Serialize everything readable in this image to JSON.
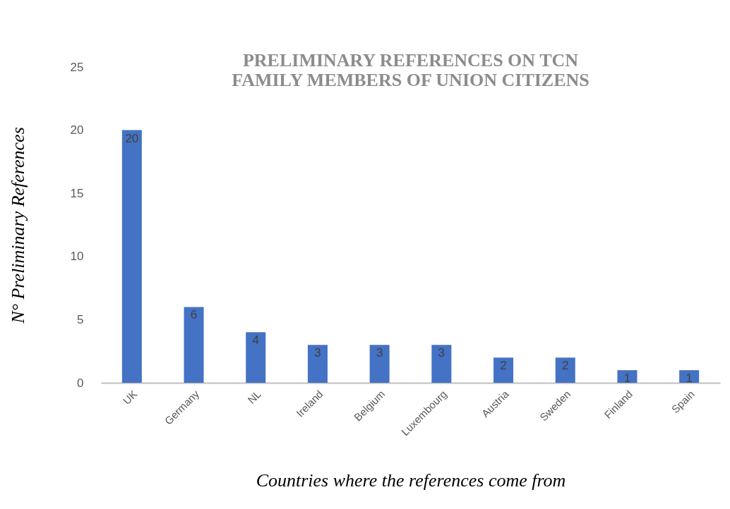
{
  "chart_data": {
    "type": "bar",
    "title": "PRELIMINARY REFERENCES ON TCN\nFAMILY MEMBERS OF UNION CITIZENS",
    "xlabel": "Countries where the references come from",
    "ylabel": "N° Preliminary References",
    "categories": [
      "UK",
      "Germany",
      "NL",
      "Ireland",
      "Belgium",
      "Luxembourg",
      "Austria",
      "Sweden",
      "Finland",
      "Spain"
    ],
    "values": [
      20,
      6,
      4,
      3,
      3,
      3,
      2,
      2,
      1,
      1
    ],
    "color": "#4472c4",
    "ylim": [
      0,
      25
    ],
    "yticks": [
      0,
      5,
      10,
      15,
      20,
      25
    ],
    "data_labels": true
  }
}
